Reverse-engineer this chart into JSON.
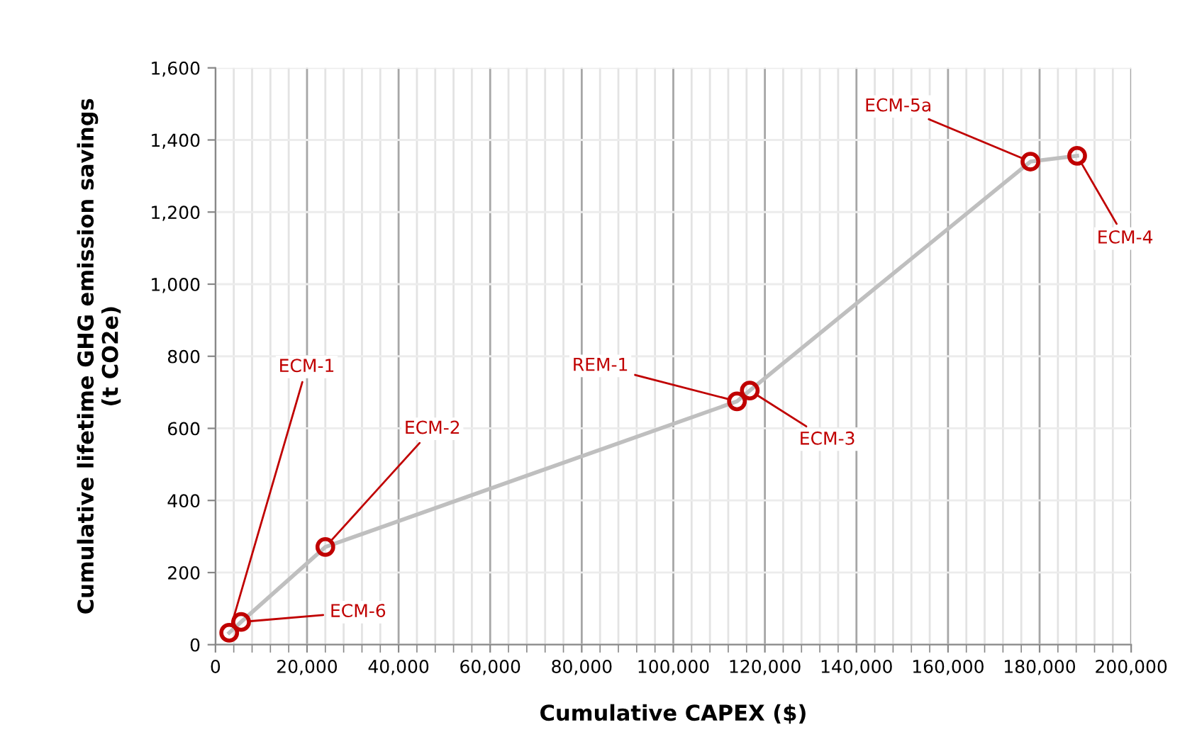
{
  "chart_data": {
    "type": "line",
    "xlabel": "Cumulative CAPEX ($)",
    "ylabel": "Cumulative lifetime GHG emission savings\n(t CO2e)",
    "series": [
      {
        "color": "#bfbfbf",
        "colors": [
          "#c00000",
          "#c00000",
          "#c00000",
          "#c00000",
          "#c00000",
          "#c00000",
          "#c00000"
        ],
        "x": [
          3000,
          5600,
          24000,
          113900,
          116700,
          178000,
          188200
        ],
        "values": [
          33,
          63,
          271,
          675,
          705,
          1340,
          1356
        ]
      }
    ],
    "marker": "circle",
    "line_style": "solid",
    "grid": true,
    "xlim": [
      0,
      200000
    ],
    "ylim": [
      0,
      1600
    ],
    "xticks": [
      {
        "value": 0,
        "label": "0"
      },
      {
        "value": 20000,
        "label": "20,000"
      },
      {
        "value": 40000,
        "label": "40,000"
      },
      {
        "value": 60000,
        "label": "60,000"
      },
      {
        "value": 80000,
        "label": "80,000"
      },
      {
        "value": 100000,
        "label": "100,000"
      },
      {
        "value": 120000,
        "label": "120,000"
      },
      {
        "value": 140000,
        "label": "140,000"
      },
      {
        "value": 160000,
        "label": "160,000"
      },
      {
        "value": 180000,
        "label": "180,000"
      },
      {
        "value": 200000,
        "label": "200,000"
      }
    ],
    "yticks": [
      {
        "value": 0,
        "label": "0"
      },
      {
        "value": 200,
        "label": "200"
      },
      {
        "value": 400,
        "label": "400"
      },
      {
        "value": 600,
        "label": "600"
      },
      {
        "value": 800,
        "label": "800"
      },
      {
        "value": 1000,
        "label": "1,000"
      },
      {
        "value": 1200,
        "label": "1,200"
      },
      {
        "value": 1400,
        "label": "1,400"
      },
      {
        "value": 1600,
        "label": "1,600"
      }
    ],
    "annotations": [
      {
        "text": "ECM-1",
        "x": 3000,
        "y": 33
      },
      {
        "text": "ECM-6",
        "x": 5600,
        "y": 63
      },
      {
        "text": "ECM-2",
        "x": 24000,
        "y": 271
      },
      {
        "text": "REM-1",
        "x": 113900,
        "y": 675
      },
      {
        "text": "ECM-3",
        "x": 116700,
        "y": 705
      },
      {
        "text": "ECM-5a",
        "x": 178000,
        "y": 1340
      },
      {
        "text": "ECM-4",
        "x": 188200,
        "y": 1356
      }
    ]
  }
}
